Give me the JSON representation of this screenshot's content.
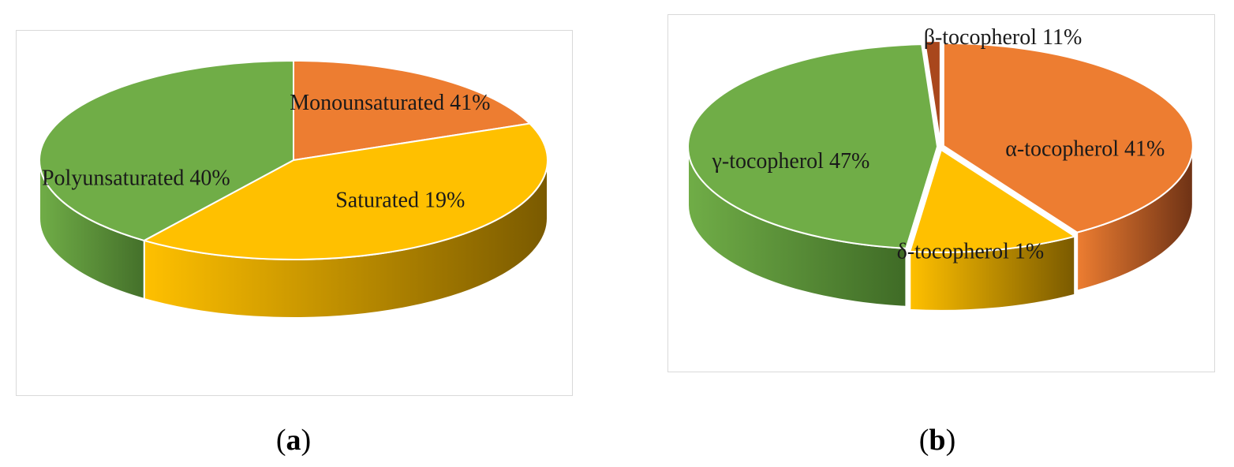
{
  "chart_data": [
    {
      "type": "pie",
      "panel_label": "a",
      "slices": [
        {
          "label": "Saturated 19%",
          "value": 19,
          "color": "#ED7D31",
          "side_color": "#8C4A1D"
        },
        {
          "label": "Monounsaturated 41%",
          "value": 41,
          "color": "#FFC000",
          "side_color": "#7A5A00"
        },
        {
          "label": "Polyunsaturated 40%",
          "value": 40,
          "color": "#70AD47",
          "side_color": "#44702A"
        }
      ]
    },
    {
      "type": "pie",
      "panel_label": "b",
      "slices": [
        {
          "label": "α-tocopherol 41%",
          "value": 41,
          "color": "#ED7D31",
          "side_color": "#6E3215"
        },
        {
          "label": "β-tocopherol 11%",
          "value": 11,
          "color": "#FFC000",
          "side_color": "#7A5A00"
        },
        {
          "label": "γ-tocopherol 47%",
          "value": 47,
          "color": "#70AD47",
          "side_color": "#3F6B26"
        },
        {
          "label": "δ-tocopherol 1%",
          "value": 1,
          "color": "#A9471C",
          "side_color": "#6E2B10"
        }
      ]
    }
  ]
}
